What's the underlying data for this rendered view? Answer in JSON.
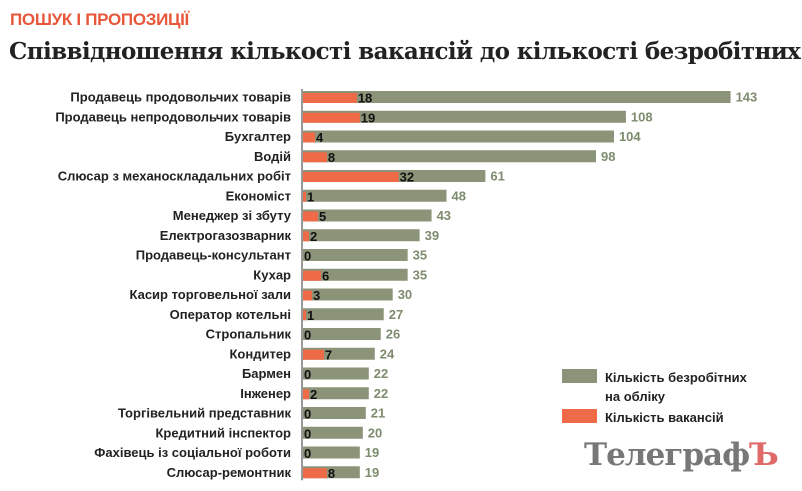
{
  "header": {
    "kicker": "ПОШУК І ПРОПОЗИЦІЇ",
    "title": "Співвідношення кількості вакансій до кількості безробітних"
  },
  "chart_data": {
    "type": "bar",
    "orientation": "horizontal",
    "categories": [
      "Продавець продовольчих товарів",
      "Продавець непродовольчих товарів",
      "Бухгалтер",
      "Водій",
      "Слюсар з механоскладальних робіт",
      "Економіст",
      "Менеджер зі збуту",
      "Електрогазозварник",
      "Продавець-консультант",
      "Кухар",
      "Касир торговельної зали",
      "Оператор котельні",
      "Стропальник",
      "Кондитер",
      "Бармен",
      "Інженер",
      "Торгівельний представник",
      "Кредитний інспектор",
      "Фахівець із соціальної роботи",
      "Слюсар-ремонтник"
    ],
    "series": [
      {
        "name": "Кількість безробітних на обліку",
        "color": "#8b9379",
        "values": [
          143,
          108,
          104,
          98,
          61,
          48,
          43,
          39,
          35,
          35,
          30,
          27,
          26,
          24,
          22,
          22,
          21,
          20,
          19,
          19
        ]
      },
      {
        "name": "Кількість вакансій",
        "color": "#ef6a47",
        "values": [
          18,
          19,
          4,
          8,
          32,
          1,
          5,
          2,
          0,
          6,
          3,
          1,
          0,
          7,
          0,
          2,
          0,
          0,
          0,
          8
        ]
      }
    ],
    "data_labels": true,
    "legend": "bottom-right"
  },
  "legend": {
    "items": [
      {
        "line1": "Кількість безробітних",
        "line2": "на обліку",
        "color": "#8b9379"
      },
      {
        "line1": "Кількість вакансій",
        "line2": "",
        "color": "#ef6a47"
      }
    ]
  },
  "logo": {
    "main": "Телеграф",
    "accent": "Ъ"
  }
}
